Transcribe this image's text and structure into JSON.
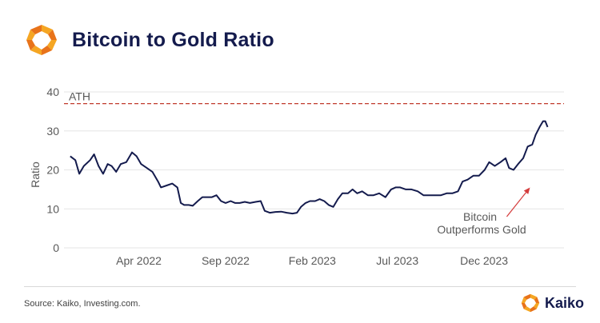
{
  "header": {
    "title": "Bitcoin to Gold Ratio"
  },
  "footer": {
    "source": "Source: Kaiko, Investing.com.",
    "brand": "Kaiko"
  },
  "colors": {
    "line": "#141b4d",
    "ath": "#c0392b",
    "arrow": "#d43c3c",
    "logo_orange": "#f5a623",
    "logo_dark_orange": "#e8731a",
    "grid": "#e6e6e6"
  },
  "chart_data": {
    "type": "line",
    "title": "",
    "xlabel": "",
    "ylabel": "Ratio",
    "ylim": [
      0,
      40
    ],
    "yticks": [
      0,
      10,
      20,
      30,
      40
    ],
    "xlim": [
      "2021-11-20",
      "2024-04-20"
    ],
    "xticks": [
      {
        "date": "2022-04-01",
        "label": "Apr 2022"
      },
      {
        "date": "2022-09-01",
        "label": "Sep 2022"
      },
      {
        "date": "2023-02-01",
        "label": "Feb 2023"
      },
      {
        "date": "2023-07-01",
        "label": "Jul 2023"
      },
      {
        "date": "2023-12-01",
        "label": "Dec 2023"
      }
    ],
    "grid": true,
    "reference_line": {
      "label": "ATH",
      "value": 37
    },
    "annotation": {
      "lines": [
        "Bitcoin",
        "Outperforms Gold"
      ],
      "arrow_from": {
        "date": "2024-01-10",
        "value": 8
      },
      "arrow_to": {
        "date": "2024-02-20",
        "value": 15.5
      }
    },
    "series": [
      {
        "points": [
          [
            "2021-12-01",
            23.5
          ],
          [
            "2021-12-10",
            22.5
          ],
          [
            "2021-12-17",
            19.0
          ],
          [
            "2021-12-25",
            21.0
          ],
          [
            "2022-01-05",
            22.5
          ],
          [
            "2022-01-12",
            24.0
          ],
          [
            "2022-01-20",
            21.0
          ],
          [
            "2022-01-28",
            19.0
          ],
          [
            "2022-02-05",
            21.5
          ],
          [
            "2022-02-12",
            21.0
          ],
          [
            "2022-02-20",
            19.5
          ],
          [
            "2022-02-28",
            21.5
          ],
          [
            "2022-03-10",
            22.0
          ],
          [
            "2022-03-20",
            24.5
          ],
          [
            "2022-03-28",
            23.5
          ],
          [
            "2022-04-05",
            21.5
          ],
          [
            "2022-04-15",
            20.5
          ],
          [
            "2022-04-25",
            19.5
          ],
          [
            "2022-05-05",
            17.0
          ],
          [
            "2022-05-10",
            15.5
          ],
          [
            "2022-05-20",
            16.0
          ],
          [
            "2022-05-30",
            16.5
          ],
          [
            "2022-06-08",
            15.5
          ],
          [
            "2022-06-14",
            11.5
          ],
          [
            "2022-06-20",
            11.0
          ],
          [
            "2022-06-28",
            11.0
          ],
          [
            "2022-07-05",
            10.8
          ],
          [
            "2022-07-14",
            12.0
          ],
          [
            "2022-07-22",
            13.0
          ],
          [
            "2022-07-30",
            13.0
          ],
          [
            "2022-08-08",
            13.0
          ],
          [
            "2022-08-16",
            13.5
          ],
          [
            "2022-08-24",
            12.0
          ],
          [
            "2022-09-01",
            11.5
          ],
          [
            "2022-09-10",
            12.0
          ],
          [
            "2022-09-18",
            11.5
          ],
          [
            "2022-09-26",
            11.5
          ],
          [
            "2022-10-05",
            11.8
          ],
          [
            "2022-10-14",
            11.5
          ],
          [
            "2022-10-24",
            11.8
          ],
          [
            "2022-11-02",
            12.0
          ],
          [
            "2022-11-09",
            9.5
          ],
          [
            "2022-11-18",
            9.0
          ],
          [
            "2022-11-28",
            9.2
          ],
          [
            "2022-12-08",
            9.3
          ],
          [
            "2022-12-18",
            9.0
          ],
          [
            "2022-12-28",
            8.8
          ],
          [
            "2023-01-05",
            9.0
          ],
          [
            "2023-01-12",
            10.5
          ],
          [
            "2023-01-20",
            11.5
          ],
          [
            "2023-01-28",
            12.0
          ],
          [
            "2023-02-06",
            12.0
          ],
          [
            "2023-02-14",
            12.5
          ],
          [
            "2023-02-22",
            12.0
          ],
          [
            "2023-03-02",
            11.0
          ],
          [
            "2023-03-10",
            10.5
          ],
          [
            "2023-03-18",
            12.5
          ],
          [
            "2023-03-26",
            14.0
          ],
          [
            "2023-04-05",
            14.0
          ],
          [
            "2023-04-13",
            15.0
          ],
          [
            "2023-04-21",
            14.0
          ],
          [
            "2023-04-30",
            14.5
          ],
          [
            "2023-05-10",
            13.5
          ],
          [
            "2023-05-20",
            13.5
          ],
          [
            "2023-05-30",
            14.0
          ],
          [
            "2023-06-10",
            13.0
          ],
          [
            "2023-06-20",
            15.0
          ],
          [
            "2023-06-28",
            15.5
          ],
          [
            "2023-07-06",
            15.5
          ],
          [
            "2023-07-16",
            15.0
          ],
          [
            "2023-07-26",
            15.0
          ],
          [
            "2023-08-06",
            14.5
          ],
          [
            "2023-08-16",
            13.5
          ],
          [
            "2023-08-26",
            13.5
          ],
          [
            "2023-09-06",
            13.5
          ],
          [
            "2023-09-16",
            13.5
          ],
          [
            "2023-09-26",
            14.0
          ],
          [
            "2023-10-06",
            14.0
          ],
          [
            "2023-10-16",
            14.5
          ],
          [
            "2023-10-24",
            17.0
          ],
          [
            "2023-11-02",
            17.5
          ],
          [
            "2023-11-12",
            18.5
          ],
          [
            "2023-11-22",
            18.5
          ],
          [
            "2023-12-02",
            20.0
          ],
          [
            "2023-12-10",
            22.0
          ],
          [
            "2023-12-20",
            21.0
          ],
          [
            "2023-12-30",
            22.0
          ],
          [
            "2024-01-08",
            23.0
          ],
          [
            "2024-01-14",
            20.5
          ],
          [
            "2024-01-22",
            20.0
          ],
          [
            "2024-01-30",
            21.5
          ],
          [
            "2024-02-08",
            23.0
          ],
          [
            "2024-02-16",
            26.0
          ],
          [
            "2024-02-24",
            26.5
          ],
          [
            "2024-03-01",
            29.0
          ],
          [
            "2024-03-08",
            31.0
          ],
          [
            "2024-03-14",
            32.5
          ],
          [
            "2024-03-18",
            32.5
          ],
          [
            "2024-03-22",
            31.0
          ]
        ]
      }
    ]
  }
}
